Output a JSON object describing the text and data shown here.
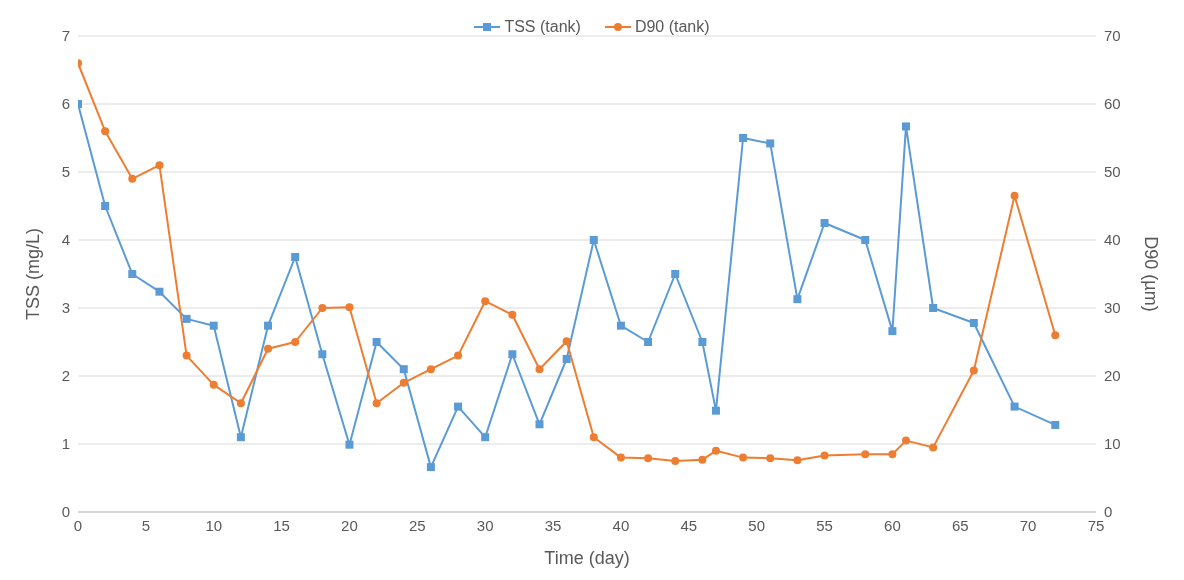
{
  "chart_data": {
    "type": "line",
    "xlabel": "Time (day)",
    "ylabel": "TSS (mg/L)",
    "y2label": "D90 (µm)",
    "x": [
      0,
      2,
      4,
      6,
      8,
      10,
      12,
      14,
      16,
      18,
      20,
      22,
      24,
      26,
      28,
      30,
      32,
      34,
      36,
      38,
      40,
      42,
      44,
      46,
      47,
      49,
      51,
      53,
      55,
      58,
      60,
      61,
      63,
      66,
      69,
      72
    ],
    "series": [
      {
        "name": "TSS (tank)",
        "color": "#5b9bd5",
        "marker": "square",
        "values": [
          6.0,
          4.5,
          3.5,
          3.24,
          2.84,
          2.74,
          1.1,
          2.74,
          3.75,
          2.32,
          0.99,
          2.5,
          2.1,
          0.66,
          1.55,
          1.1,
          2.32,
          1.29,
          2.25,
          4.0,
          2.74,
          2.5,
          3.5,
          2.5,
          1.49,
          5.5,
          5.42,
          3.13,
          4.25,
          4.0,
          2.66,
          5.67,
          3.0,
          2.78,
          1.55,
          1.28
        ]
      },
      {
        "name": "D90 (tank)",
        "color": "#ed7d31",
        "marker": "circle",
        "axis": "y2",
        "values": [
          66,
          56,
          49,
          51,
          23,
          18.7,
          16,
          24,
          25,
          30,
          30.1,
          16,
          19,
          21,
          23,
          31,
          29,
          21,
          25.1,
          11,
          8,
          7.9,
          7.5,
          7.7,
          9,
          8,
          7.9,
          7.6,
          8.3,
          8.5,
          8.5,
          10.5,
          9.5,
          20.8,
          46.5,
          26
        ]
      }
    ],
    "xlim": [
      0,
      75
    ],
    "xticks": [
      0,
      5,
      10,
      15,
      20,
      25,
      30,
      35,
      40,
      45,
      50,
      55,
      60,
      65,
      70,
      75
    ],
    "ylim": [
      0,
      7
    ],
    "yticks": [
      0,
      1,
      2,
      3,
      4,
      5,
      6,
      7
    ],
    "y2lim": [
      0,
      70
    ],
    "y2ticks": [
      0,
      10,
      20,
      30,
      40,
      50,
      60,
      70
    ],
    "grid": "y",
    "legend": "top",
    "line_style": "solid"
  }
}
